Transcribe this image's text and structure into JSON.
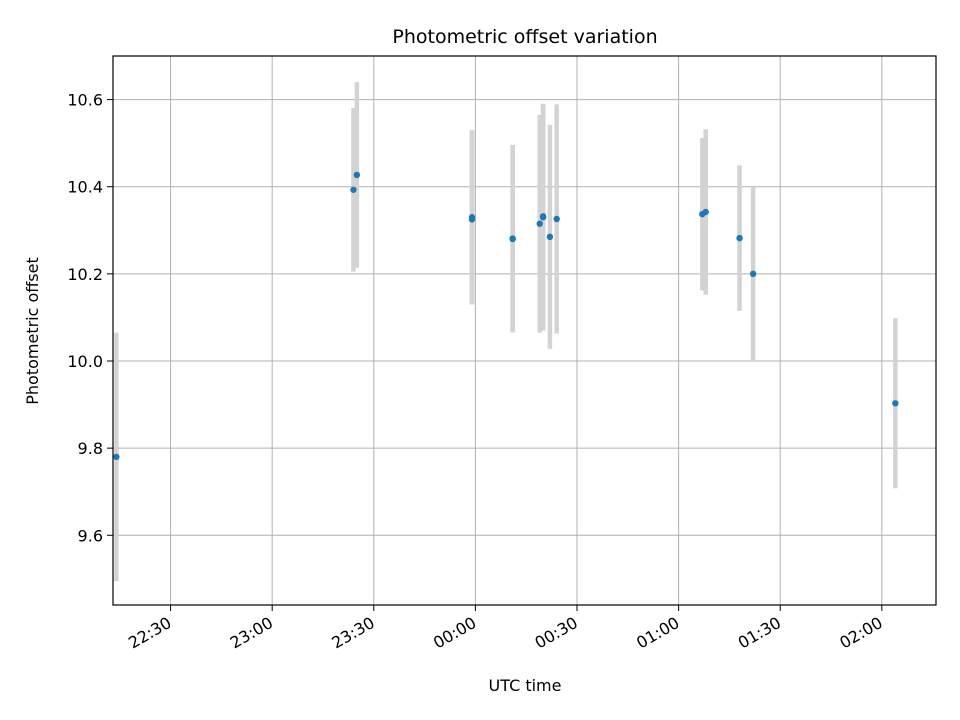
{
  "chart_data": {
    "type": "scatter",
    "title": "Photometric offset variation",
    "xlabel": "UTC time",
    "ylabel": "Photometric offset",
    "x_axis_type": "time",
    "xlim": [
      "22:13",
      "02:16"
    ],
    "ylim": [
      9.44,
      10.7
    ],
    "x_ticks": [
      "22:30",
      "23:00",
      "23:30",
      "00:00",
      "00:30",
      "01:00",
      "01:30",
      "02:00"
    ],
    "y_ticks": [
      "9.6",
      "9.8",
      "10.0",
      "10.2",
      "10.4",
      "10.6"
    ],
    "y_tick_values": [
      9.6,
      9.8,
      10.0,
      10.2,
      10.4,
      10.6
    ],
    "grid": true,
    "marker_color": "#1f77b4",
    "errorbar_color": "#d3d3d3",
    "points": [
      {
        "time": "22:14",
        "y": 9.78,
        "err": 0.285
      },
      {
        "time": "23:24",
        "y": 10.393,
        "err": 0.188
      },
      {
        "time": "23:25",
        "y": 10.427,
        "err": 0.213
      },
      {
        "time": "23:59",
        "y": 10.33,
        "err": 0.2
      },
      {
        "time": "23:59",
        "y": 10.325,
        "err": 0.195
      },
      {
        "time": "00:11",
        "y": 10.281,
        "err": 0.215
      },
      {
        "time": "00:11",
        "y": 10.28,
        "err": 0.214
      },
      {
        "time": "00:19",
        "y": 10.315,
        "err": 0.25
      },
      {
        "time": "00:20",
        "y": 10.33,
        "err": 0.26
      },
      {
        "time": "00:20",
        "y": 10.332,
        "err": 0.258
      },
      {
        "time": "00:22",
        "y": 10.285,
        "err": 0.257
      },
      {
        "time": "00:24",
        "y": 10.326,
        "err": 0.263
      },
      {
        "time": "01:07",
        "y": 10.337,
        "err": 0.175
      },
      {
        "time": "01:08",
        "y": 10.342,
        "err": 0.19
      },
      {
        "time": "01:18",
        "y": 10.282,
        "err": 0.167
      },
      {
        "time": "01:22",
        "y": 10.2,
        "err": 0.2
      },
      {
        "time": "02:04",
        "y": 9.903,
        "err": 0.195
      }
    ]
  }
}
